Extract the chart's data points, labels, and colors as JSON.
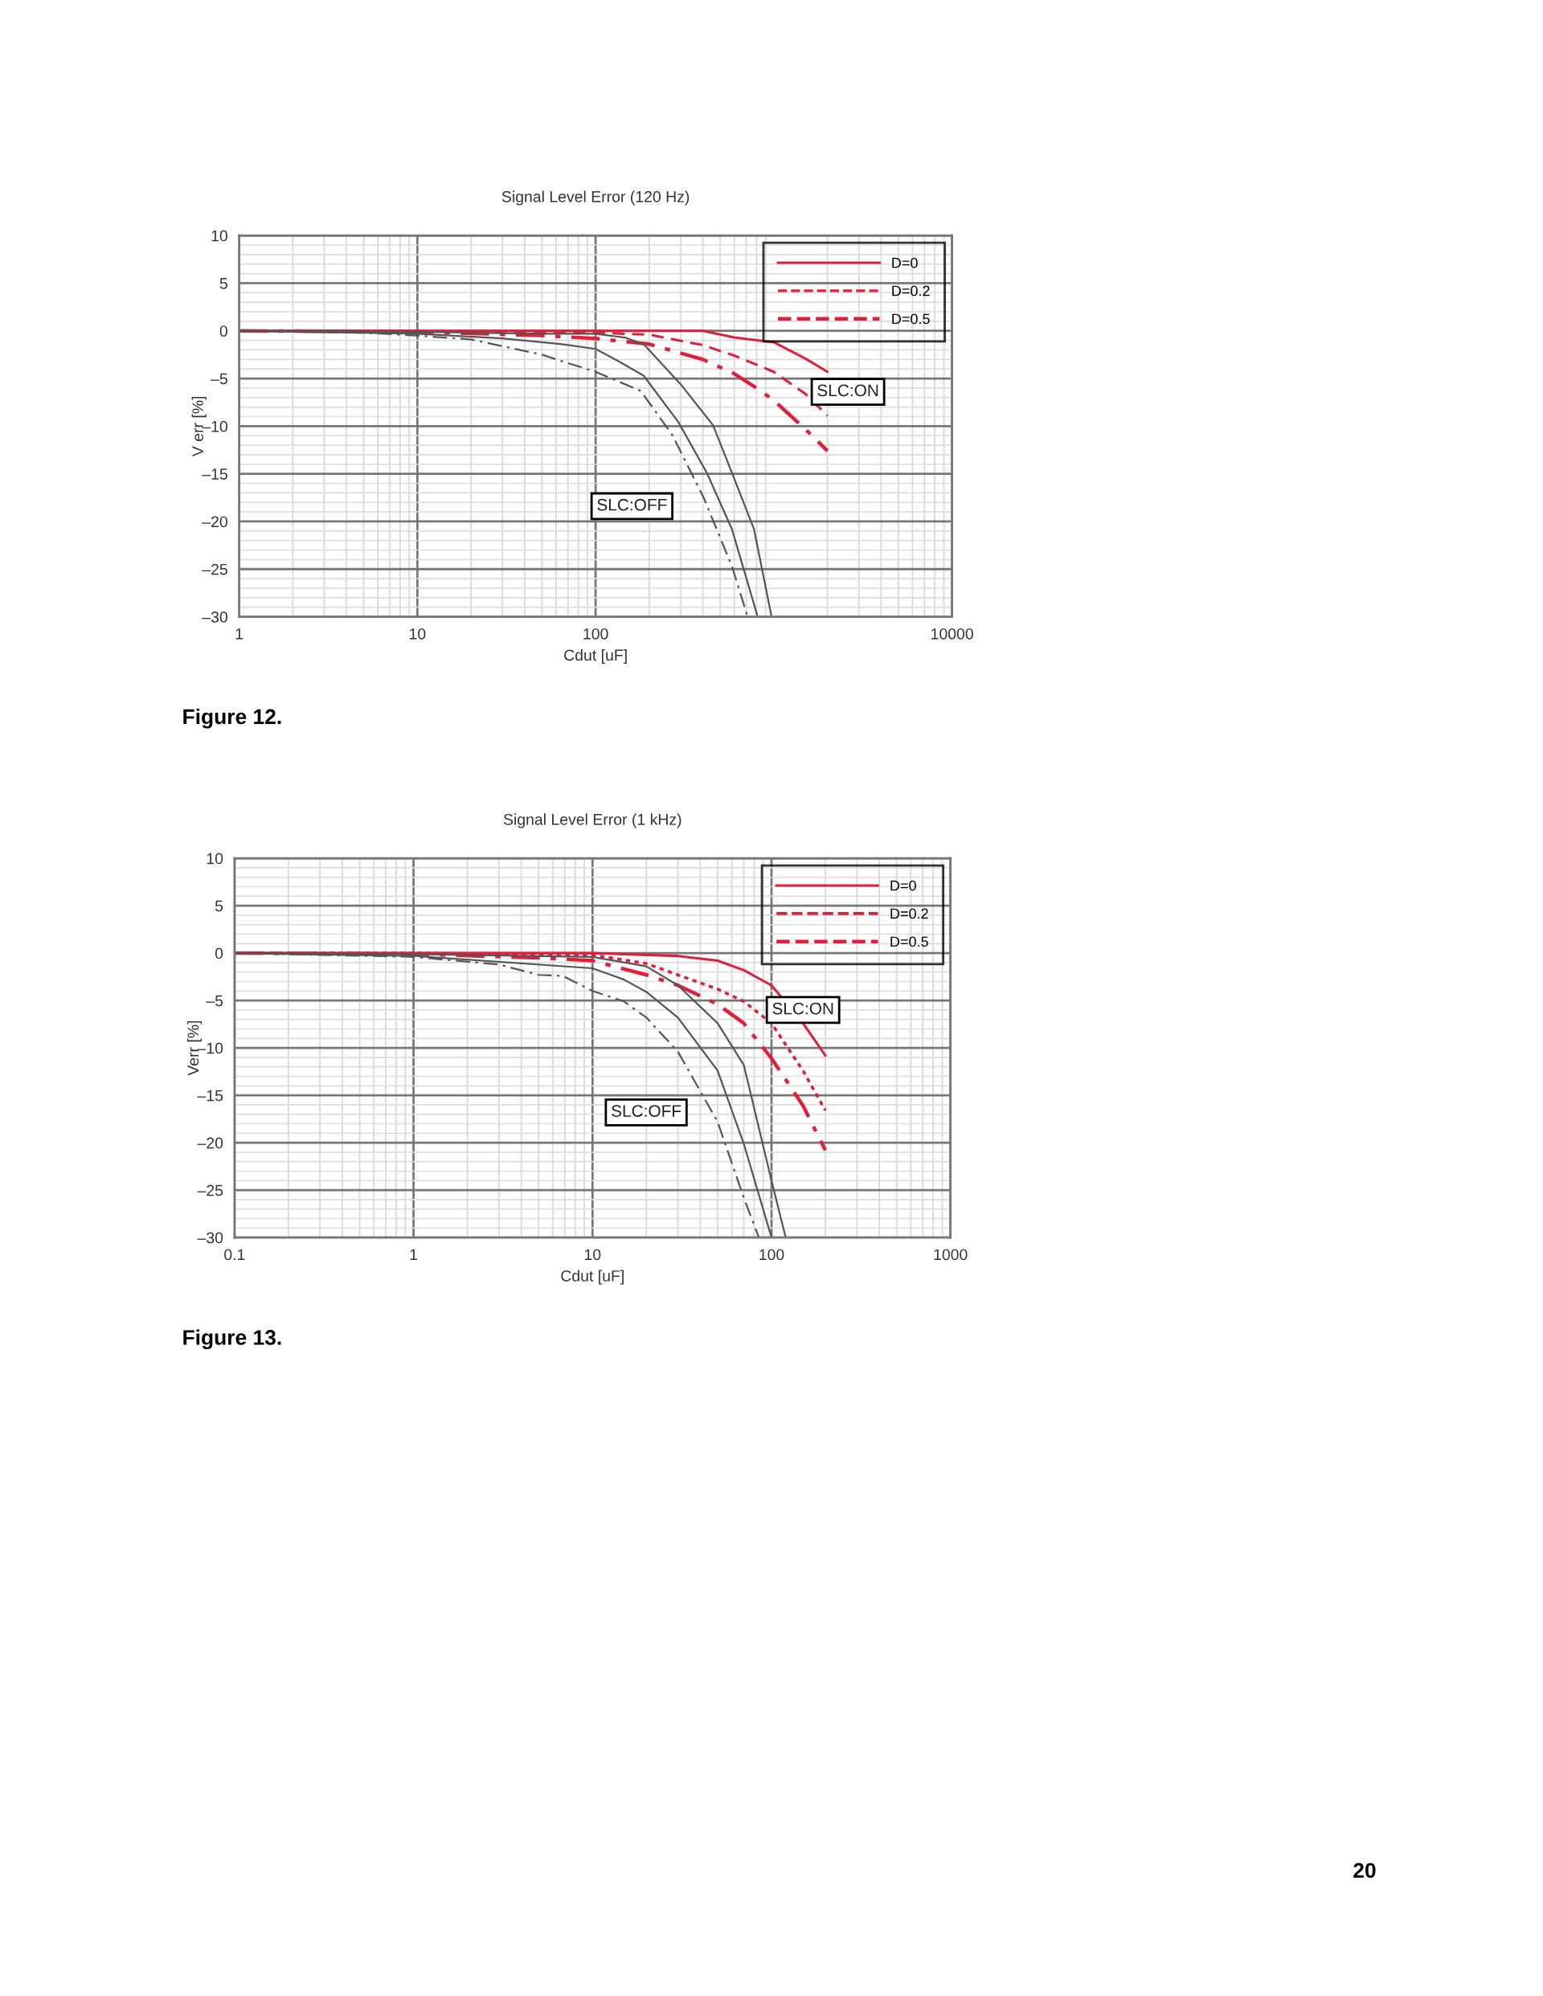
{
  "chart_data": [
    {
      "type": "line",
      "title": "Signal Level Error (120 Hz)",
      "xlabel": "Cdut [uF]",
      "ylabel": "V err [%]",
      "log": "x",
      "xlim": [
        1,
        10000
      ],
      "xticks": [
        1,
        10,
        100,
        10000
      ],
      "ylim": [
        -30,
        10
      ],
      "yticks": [
        {
          "value": -30,
          "label": "–30"
        },
        {
          "value": -25,
          "label": "–25"
        },
        {
          "value": -20,
          "label": "–20"
        },
        {
          "value": -15,
          "label": "–15"
        },
        {
          "value": -10,
          "label": "–10"
        },
        {
          "value": -5,
          "label": "–5"
        },
        0,
        5,
        10
      ],
      "grid": true,
      "legend": "top right",
      "series": [
        {
          "name": "D=0",
          "color": "#e0203a",
          "line_style": "solid",
          "x": [
            1,
            10,
            100,
            400,
            600,
            1000,
            1500,
            2000
          ],
          "values": [
            0,
            0,
            0,
            0,
            -0.7,
            -1.2,
            -2.9,
            -4.3
          ]
        },
        {
          "name": "D=0.2",
          "color": "#e0203a",
          "line_style": "dashed",
          "x": [
            1,
            10,
            100,
            200,
            400,
            600,
            1000,
            1500,
            2000
          ],
          "values": [
            0,
            0,
            -0.2,
            -0.4,
            -1.5,
            -2.6,
            -4.3,
            -6.6,
            -8.9
          ]
        },
        {
          "name": "D=0.5",
          "color": "#e0203a",
          "line_style": "dashdot",
          "x": [
            1,
            10,
            50,
            100,
            200,
            400,
            600,
            800,
            1000,
            1500,
            2000
          ],
          "values": [
            0,
            -0.1,
            -0.5,
            -0.8,
            -1.4,
            -3.0,
            -4.5,
            -6.0,
            -7.3,
            -10.3,
            -12.6
          ]
        },
        {
          "color": "#555555",
          "line_style": "solid",
          "x": [
            1,
            10,
            50,
            100,
            146,
            186,
            300,
            456,
            582,
            774,
            967
          ],
          "values": [
            0,
            -0.1,
            -0.3,
            -0.3,
            -0.7,
            -1.4,
            -5.6,
            -9.9,
            -14.9,
            -20.8,
            -29.8
          ]
        },
        {
          "color": "#555555",
          "line_style": "solid",
          "x": [
            1,
            10,
            30,
            65,
            100,
            135,
            186,
            292,
            421,
            582,
            806
          ],
          "values": [
            0,
            -0.3,
            -0.8,
            -1.4,
            -1.9,
            -3.2,
            -4.7,
            -9.6,
            -14.9,
            -20.8,
            -29.8
          ]
        },
        {
          "color": "#555555",
          "line_style": "dashdot",
          "x": [
            1,
            5,
            10,
            20,
            50,
            65,
            100,
            179,
            269,
            404,
            582,
            713
          ],
          "values": [
            0,
            -0.2,
            -0.5,
            -0.9,
            -2.5,
            -3.2,
            -4.3,
            -6.3,
            -10.9,
            -17.5,
            -24.7,
            -30
          ]
        }
      ],
      "annotations": [
        "SLC:ON",
        "SLC:OFF",
        "Figure 12."
      ]
    },
    {
      "type": "line",
      "title": "Signal Level Error (1 kHz)",
      "xlabel": "Cdut [uF]",
      "ylabel": "Verr [%]",
      "log": "x",
      "xlim": [
        0.1,
        1000
      ],
      "xticks": [
        0.1,
        1,
        10,
        100,
        1000
      ],
      "ylim": [
        -30,
        10
      ],
      "yticks": [
        {
          "value": -30,
          "label": "–30"
        },
        {
          "value": -25,
          "label": "–25"
        },
        {
          "value": -20,
          "label": "–20"
        },
        {
          "value": -15,
          "label": "–15"
        },
        {
          "value": -10,
          "label": "–10"
        },
        {
          "value": -5,
          "label": "–5"
        },
        0,
        5,
        10
      ],
      "grid": true,
      "legend": "top right",
      "series": [
        {
          "name": "D=0",
          "color": "#e0203a",
          "line_style": "solid",
          "x": [
            0.1,
            1,
            10,
            30,
            50,
            70,
            100,
            150,
            200
          ],
          "values": [
            0,
            0,
            0,
            -0.3,
            -0.8,
            -1.8,
            -3.4,
            -7.4,
            -10.8
          ]
        },
        {
          "name": "D=0.2",
          "color": "#e0203a",
          "line_style": "dotted",
          "x": [
            0.1,
            1,
            10,
            20,
            30,
            50,
            70,
            100,
            150,
            200
          ],
          "values": [
            0,
            0,
            -0.2,
            -1.1,
            -2.3,
            -3.8,
            -5.1,
            -7.4,
            -12.4,
            -16.6
          ]
        },
        {
          "name": "D=0.5",
          "color": "#e0203a",
          "line_style": "dashdot",
          "x": [
            0.1,
            1,
            5,
            10,
            20,
            30,
            50,
            70,
            100,
            150,
            200
          ],
          "values": [
            0,
            -0.1,
            -0.5,
            -0.8,
            -2.3,
            -3.4,
            -5.4,
            -7.4,
            -11.1,
            -16.1,
            -20.8
          ]
        },
        {
          "color": "#555555",
          "line_style": "solid",
          "x": [
            0.1,
            1,
            10,
            20,
            30,
            50,
            70,
            100,
            120
          ],
          "values": [
            0,
            -0.1,
            -0.4,
            -1.4,
            -3.4,
            -7.4,
            -11.8,
            -24,
            -30
          ]
        },
        {
          "color": "#555555",
          "line_style": "solid",
          "x": [
            0.1,
            1,
            10,
            15,
            20,
            30,
            50,
            70,
            100
          ],
          "values": [
            0,
            -0.3,
            -1.6,
            -2.8,
            -4.1,
            -6.8,
            -12.4,
            -20.1,
            -30
          ]
        },
        {
          "color": "#555555",
          "line_style": "dashdot",
          "x": [
            0.1,
            1,
            3,
            5,
            6.8,
            10,
            15,
            20,
            30,
            50,
            70,
            85
          ],
          "values": [
            0,
            -0.4,
            -1.2,
            -2.3,
            -2.4,
            -4.0,
            -5.1,
            -6.8,
            -10.4,
            -17.8,
            -25.8,
            -30
          ]
        }
      ],
      "annotations": [
        "SLC:ON",
        "SLC:OFF",
        "Figure 13.",
        "20"
      ]
    }
  ]
}
